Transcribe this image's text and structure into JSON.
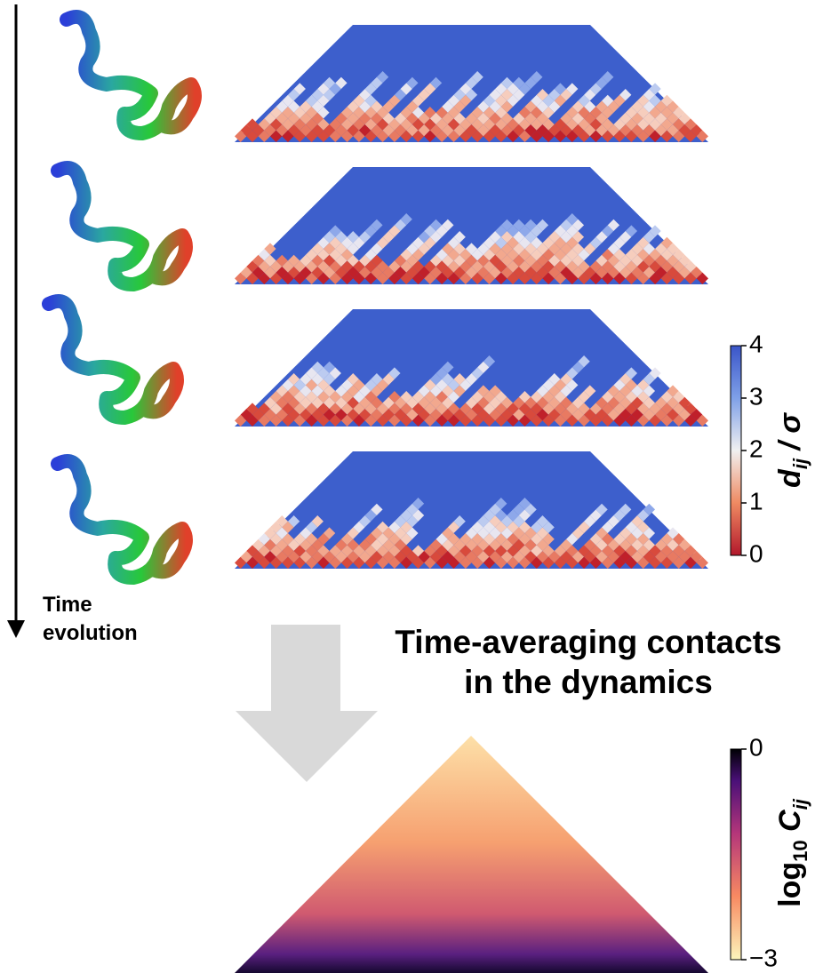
{
  "time_label": [
    "Time",
    "evolution"
  ],
  "caption": [
    "Time-averaging contacts",
    "in the dynamics"
  ],
  "distance_colorbar": {
    "label": {
      "symbol": "d",
      "subscript": "ij",
      "rest": " / σ"
    },
    "ticks": [
      0,
      1,
      2,
      3,
      4
    ]
  },
  "contact_colorbar": {
    "label": {
      "prefix": "log",
      "base": "10",
      "symbol": " C",
      "subscript": "ij"
    },
    "ticks": [
      {
        "value": 0,
        "label": "0"
      },
      {
        "value": -3,
        "label": "−3"
      }
    ]
  }
}
